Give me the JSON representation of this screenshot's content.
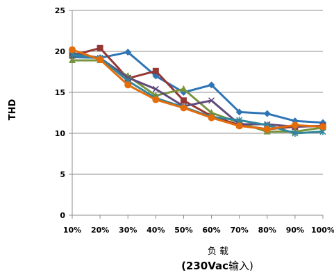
{
  "chart_data": {
    "type": "line",
    "title": "",
    "ylabel": "THD",
    "xlabel": "负 载",
    "xlabel_line2_prefix": "(230Vac",
    "xlabel_line2_suffix": "输入)",
    "ylim": [
      0,
      25
    ],
    "yticks": [
      0,
      5,
      10,
      15,
      20,
      25
    ],
    "grid": "horizontal",
    "legend": "none",
    "categories": [
      "10%",
      "20%",
      "30%",
      "40%",
      "50%",
      "60%",
      "70%",
      "80%",
      "90%",
      "100%"
    ],
    "series": [
      {
        "color": "#2e75b6",
        "marker": "diamond",
        "values": [
          19.3,
          19.2,
          19.9,
          17.0,
          15.0,
          15.9,
          12.6,
          12.4,
          11.5,
          11.3
        ]
      },
      {
        "color": "#953735",
        "marker": "square",
        "values": [
          19.5,
          20.4,
          16.7,
          17.6,
          14.0,
          12.1,
          11.0,
          10.5,
          10.8,
          10.9
        ]
      },
      {
        "color": "#77933c",
        "marker": "triangle",
        "values": [
          18.9,
          18.9,
          17.0,
          14.6,
          15.4,
          12.5,
          11.3,
          10.2,
          10.2,
          10.7
        ]
      },
      {
        "color": "#604a7b",
        "marker": "x",
        "values": [
          19.8,
          19.2,
          16.8,
          15.4,
          13.3,
          14.0,
          11.1,
          11.1,
          10.8,
          10.9
        ]
      },
      {
        "color": "#31859c",
        "marker": "star",
        "values": [
          19.6,
          19.2,
          16.4,
          14.3,
          13.2,
          12.0,
          11.6,
          11.0,
          10.0,
          10.2
        ]
      },
      {
        "color": "#e46c0a",
        "marker": "circle",
        "values": [
          20.2,
          19.0,
          15.9,
          14.1,
          13.1,
          11.9,
          10.9,
          10.5,
          11.0,
          10.8
        ]
      }
    ]
  }
}
